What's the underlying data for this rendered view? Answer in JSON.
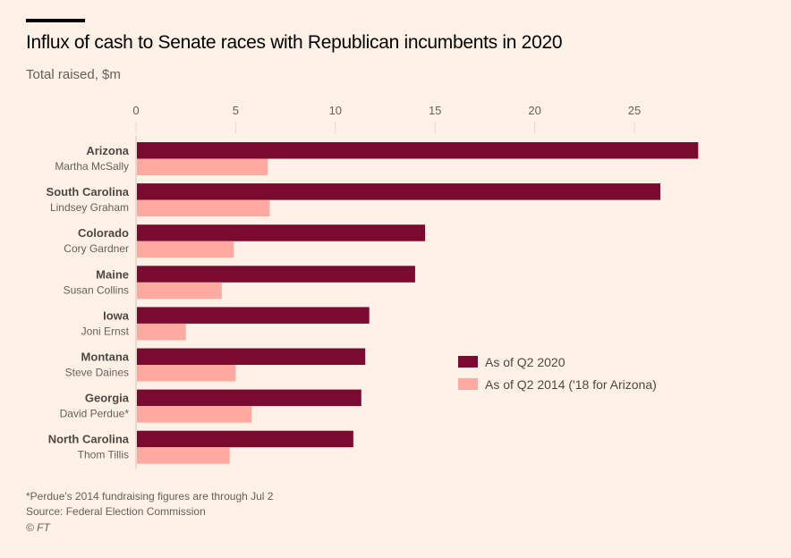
{
  "chart_data": {
    "type": "bar",
    "orientation": "horizontal",
    "title": "Influx of cash to Senate races with Republican incumbents in 2020",
    "subtitle": "Total raised, $m",
    "xlabel": "",
    "ylabel": "",
    "xlim": [
      0,
      28.5
    ],
    "xticks": [
      "0",
      "5",
      "10",
      "15",
      "20",
      "25"
    ],
    "grid": true,
    "legend_position": "center-right",
    "categories": [
      "Arizona",
      "South Carolina",
      "Colorado",
      "Maine",
      "Iowa",
      "Montana",
      "Georgia",
      "North Carolina"
    ],
    "candidates": [
      "Martha McSally",
      "Lindsey Graham",
      "Cory Gardner",
      "Susan Collins",
      "Joni Ernst",
      "Steve Daines",
      "David Perdue*",
      "Thom Tillis"
    ],
    "series": [
      {
        "name": "As of Q2 2020",
        "color": "#7a0a2f",
        "values": [
          28.2,
          26.3,
          14.5,
          14.0,
          11.7,
          11.5,
          11.3,
          10.9
        ]
      },
      {
        "name": "As of Q2 2014 ('18 for Arizona)",
        "color": "#ffaaa1",
        "values": [
          6.6,
          6.7,
          4.9,
          4.3,
          2.5,
          5.0,
          5.8,
          4.7
        ]
      }
    ]
  },
  "footer": {
    "note": "*Perdue's 2014 fundraising figures are through Jul 2",
    "source": "Source: Federal Election Commission",
    "copyright": "© FT"
  }
}
